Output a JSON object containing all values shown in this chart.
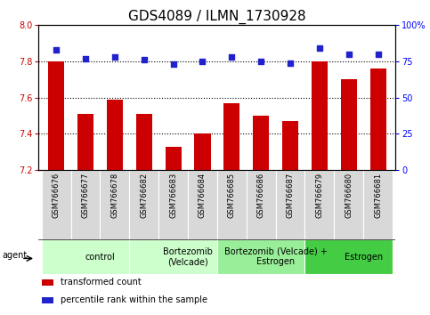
{
  "title": "GDS4089 / ILMN_1730928",
  "samples": [
    "GSM766676",
    "GSM766677",
    "GSM766678",
    "GSM766682",
    "GSM766683",
    "GSM766684",
    "GSM766685",
    "GSM766686",
    "GSM766687",
    "GSM766679",
    "GSM766680",
    "GSM766681"
  ],
  "transformed_count": [
    7.8,
    7.51,
    7.59,
    7.51,
    7.33,
    7.4,
    7.57,
    7.5,
    7.47,
    7.8,
    7.7,
    7.76
  ],
  "percentile_rank": [
    83,
    77,
    78,
    76,
    73,
    75,
    78,
    75,
    74,
    84,
    80,
    80
  ],
  "ylim_left": [
    7.2,
    8.0
  ],
  "ylim_right": [
    0,
    100
  ],
  "yticks_left": [
    7.2,
    7.4,
    7.6,
    7.8,
    8.0
  ],
  "yticks_right": [
    0,
    25,
    50,
    75,
    100
  ],
  "ytick_right_labels": [
    "0",
    "25",
    "50",
    "75",
    "100%"
  ],
  "bar_color": "#cc0000",
  "dot_color": "#2222cc",
  "grid_color": "#000000",
  "grid_yticks": [
    7.4,
    7.6,
    7.8
  ],
  "groups": [
    {
      "label": "control",
      "start": 0,
      "end": 3,
      "color": "#ccffcc"
    },
    {
      "label": "Bortezomib\n(Velcade)",
      "start": 3,
      "end": 6,
      "color": "#ccffcc"
    },
    {
      "label": "Bortezomib (Velcade) +\nEstrogen",
      "start": 6,
      "end": 9,
      "color": "#99ee99"
    },
    {
      "label": "Estrogen",
      "start": 9,
      "end": 12,
      "color": "#44cc44"
    }
  ],
  "legend_items": [
    {
      "color": "#cc0000",
      "label": "transformed count"
    },
    {
      "color": "#2222cc",
      "label": "percentile rank within the sample"
    }
  ],
  "agent_label": "agent",
  "title_fontsize": 11,
  "tick_fontsize": 7,
  "label_fontsize": 6,
  "group_fontsize": 7,
  "legend_fontsize": 7,
  "bar_width": 0.55
}
